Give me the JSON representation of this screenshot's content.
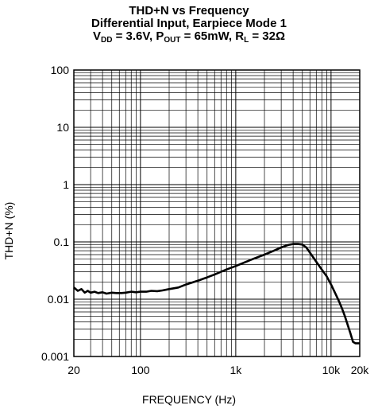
{
  "header": {
    "line1": "THD+N vs Frequency",
    "line2": "Differential Input, Earpiece Mode 1",
    "vdd_label": "V",
    "vdd_sub": "DD",
    "vdd_val": " = 3.6V, P",
    "pout_sub": "OUT",
    "pout_val": " = 65mW, R",
    "rl_sub": "L",
    "rl_val": " = 32Ω"
  },
  "chart_data": {
    "type": "line",
    "title": "THD+N vs Frequency Differential Input, Earpiece Mode 1 VDD = 3.6V, POUT = 65mW, RL = 32Ω",
    "xlabel": "FREQUENCY (Hz)",
    "ylabel": "THD+N (%)",
    "x_scale": "log",
    "y_scale": "log",
    "xlim": [
      20,
      20000
    ],
    "ylim": [
      0.001,
      100
    ],
    "x_ticks": [
      {
        "value": 20,
        "label": "20"
      },
      {
        "value": 100,
        "label": "100"
      },
      {
        "value": 1000,
        "label": "1k"
      },
      {
        "value": 10000,
        "label": "10k"
      },
      {
        "value": 20000,
        "label": "20k"
      }
    ],
    "y_ticks": [
      {
        "value": 0.001,
        "label": "0.001"
      },
      {
        "value": 0.01,
        "label": "0.01"
      },
      {
        "value": 0.1,
        "label": "0.1"
      },
      {
        "value": 1,
        "label": "1"
      },
      {
        "value": 10,
        "label": "10"
      },
      {
        "value": 100,
        "label": "100"
      }
    ],
    "grid": true,
    "series": [
      {
        "color": "#000000",
        "points": [
          [
            20,
            0.016
          ],
          [
            22,
            0.014
          ],
          [
            24,
            0.015
          ],
          [
            26,
            0.013
          ],
          [
            28,
            0.014
          ],
          [
            30,
            0.013
          ],
          [
            33,
            0.0135
          ],
          [
            36,
            0.0128
          ],
          [
            40,
            0.0132
          ],
          [
            44,
            0.0125
          ],
          [
            50,
            0.013
          ],
          [
            56,
            0.0128
          ],
          [
            63,
            0.0128
          ],
          [
            70,
            0.013
          ],
          [
            80,
            0.0135
          ],
          [
            90,
            0.0132
          ],
          [
            100,
            0.0135
          ],
          [
            115,
            0.0135
          ],
          [
            130,
            0.014
          ],
          [
            150,
            0.0138
          ],
          [
            170,
            0.0142
          ],
          [
            200,
            0.015
          ],
          [
            250,
            0.016
          ],
          [
            300,
            0.018
          ],
          [
            400,
            0.021
          ],
          [
            500,
            0.024
          ],
          [
            600,
            0.027
          ],
          [
            700,
            0.03
          ],
          [
            800,
            0.033
          ],
          [
            1000,
            0.038
          ],
          [
            1200,
            0.043
          ],
          [
            1500,
            0.05
          ],
          [
            2000,
            0.06
          ],
          [
            2500,
            0.07
          ],
          [
            3000,
            0.08
          ],
          [
            3500,
            0.088
          ],
          [
            4000,
            0.092
          ],
          [
            4500,
            0.092
          ],
          [
            5000,
            0.09
          ],
          [
            5500,
            0.08
          ],
          [
            6000,
            0.065
          ],
          [
            7000,
            0.045
          ],
          [
            8000,
            0.033
          ],
          [
            9000,
            0.025
          ],
          [
            10000,
            0.018
          ],
          [
            11000,
            0.013
          ],
          [
            12000,
            0.0095
          ],
          [
            13000,
            0.007
          ],
          [
            14000,
            0.005
          ],
          [
            15000,
            0.0035
          ],
          [
            16000,
            0.0025
          ],
          [
            17000,
            0.0018
          ],
          [
            18000,
            0.0017
          ],
          [
            20000,
            0.0017
          ]
        ]
      }
    ]
  }
}
